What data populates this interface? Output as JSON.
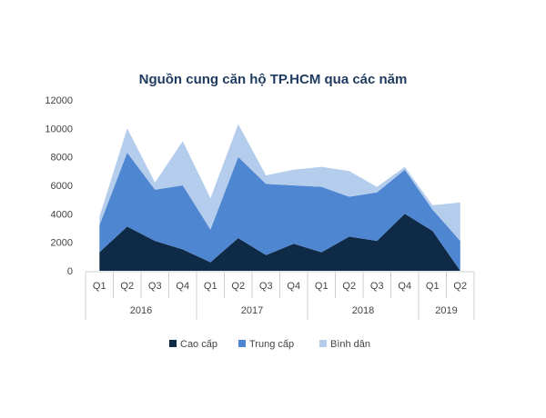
{
  "chart_data": {
    "type": "area",
    "stacked": true,
    "title": "Nguồn cung căn hộ TP.HCM qua các năm",
    "xlabel": "",
    "ylabel": "",
    "ylim": [
      0,
      12000
    ],
    "yticks": [
      0,
      2000,
      4000,
      6000,
      8000,
      10000,
      12000
    ],
    "grid": false,
    "legend_position": "bottom",
    "categories": [
      "Q1",
      "Q2",
      "Q3",
      "Q4",
      "Q1",
      "Q2",
      "Q3",
      "Q4",
      "Q1",
      "Q2",
      "Q3",
      "Q4",
      "Q1",
      "Q2"
    ],
    "years": [
      {
        "label": "2016",
        "span": 4
      },
      {
        "label": "2017",
        "span": 4
      },
      {
        "label": "2018",
        "span": 4
      },
      {
        "label": "2019",
        "span": 2
      }
    ],
    "series": [
      {
        "name": "Cao cấp",
        "color": "#0e2a47",
        "values": [
          1300,
          3100,
          2100,
          1500,
          600,
          2300,
          1100,
          1900,
          1300,
          2400,
          2100,
          4000,
          2800,
          0
        ]
      },
      {
        "name": "Trung cấp",
        "color": "#4f86d1",
        "values": [
          1900,
          5200,
          3600,
          4500,
          2300,
          5700,
          5000,
          4100,
          4600,
          2800,
          3400,
          3100,
          1500,
          2100
        ]
      },
      {
        "name": "Bình dân",
        "color": "#b4cdec",
        "values": [
          600,
          1700,
          500,
          3100,
          2200,
          2300,
          600,
          1100,
          1400,
          1800,
          400,
          200,
          300,
          2700
        ]
      }
    ]
  }
}
